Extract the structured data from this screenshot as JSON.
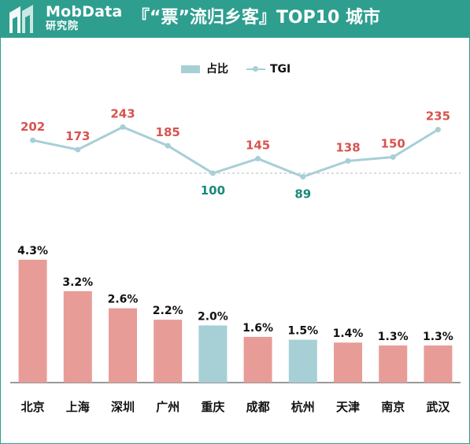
{
  "header": {
    "brand": "MobData",
    "brand_sub": "研究院",
    "title": "『“票”流归乡客』TOP10 城市"
  },
  "legend": {
    "bar_label": "占比",
    "line_label": "TGI"
  },
  "colors": {
    "header_bg": "#2e9e8f",
    "bar_default": "#e89c98",
    "bar_highlight": "#a7cfd6",
    "line": "#a7cfd6",
    "tgi_above": "#d9534f",
    "tgi_below": "#1a8a7a"
  },
  "chart_data": {
    "type": "bar",
    "categories": [
      "北京",
      "上海",
      "深圳",
      "广州",
      "重庆",
      "成都",
      "杭州",
      "天津",
      "南京",
      "武汉"
    ],
    "series": [
      {
        "name": "占比",
        "type": "bar",
        "values": [
          4.3,
          3.2,
          2.6,
          2.2,
          2.0,
          1.6,
          1.5,
          1.4,
          1.3,
          1.3
        ],
        "labels": [
          "4.3%",
          "3.2%",
          "2.6%",
          "2.2%",
          "2.0%",
          "1.6%",
          "1.5%",
          "1.4%",
          "1.3%",
          "1.3%"
        ],
        "highlight": [
          false,
          false,
          false,
          false,
          true,
          false,
          true,
          false,
          false,
          false
        ]
      },
      {
        "name": "TGI",
        "type": "line",
        "values": [
          202,
          173,
          243,
          185,
          100,
          145,
          89,
          138,
          150,
          235
        ],
        "labels": [
          "202",
          "173",
          "243",
          "185",
          "100",
          "145",
          "89",
          "138",
          "150",
          "235"
        ]
      }
    ],
    "tgi_baseline": 100,
    "legend_position": "top-center",
    "grid": false
  }
}
